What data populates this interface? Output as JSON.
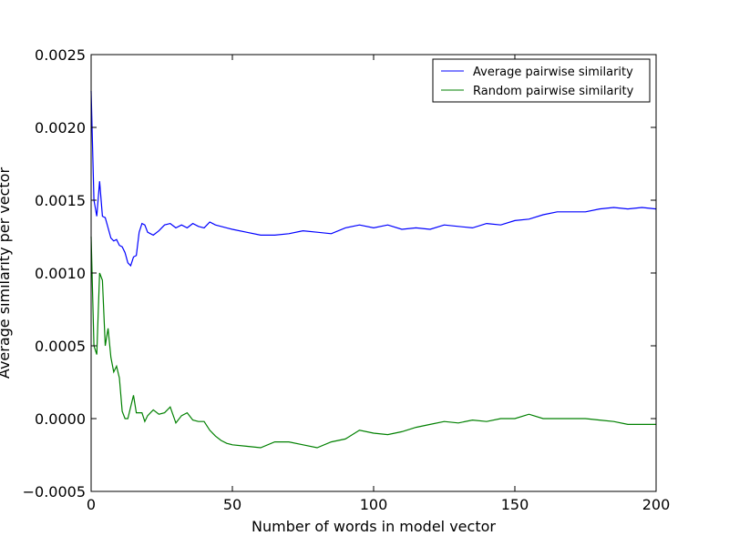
{
  "chart_data": {
    "type": "line",
    "title": "",
    "xlabel": "Number of words in model vector",
    "ylabel": "Average similarity per vector",
    "xlim": [
      0,
      200
    ],
    "ylim": [
      -0.0005,
      0.0025
    ],
    "xticks": [
      0,
      50,
      100,
      150,
      200
    ],
    "xtick_labels": [
      "0",
      "50",
      "100",
      "150",
      "200"
    ],
    "yticks": [
      -0.0005,
      0.0,
      0.0005,
      0.001,
      0.0015,
      0.002,
      0.0025
    ],
    "ytick_labels": [
      "−0.0005",
      "0.0000",
      "0.0005",
      "0.0010",
      "0.0015",
      "0.0020",
      "0.0025"
    ],
    "grid": false,
    "legend_position": "top-right",
    "series": [
      {
        "name": "Average pairwise similarity",
        "color": "#0000ff",
        "x": [
          0,
          1,
          2,
          3,
          4,
          5,
          6,
          7,
          8,
          9,
          10,
          11,
          12,
          13,
          14,
          15,
          16,
          17,
          18,
          19,
          20,
          22,
          24,
          26,
          28,
          30,
          32,
          34,
          36,
          38,
          40,
          42,
          44,
          46,
          48,
          50,
          55,
          60,
          65,
          70,
          75,
          80,
          85,
          90,
          95,
          100,
          105,
          110,
          115,
          120,
          125,
          130,
          135,
          140,
          145,
          150,
          155,
          160,
          165,
          170,
          175,
          180,
          185,
          190,
          195,
          200
        ],
        "y": [
          0.00225,
          0.0015,
          0.00139,
          0.00163,
          0.00139,
          0.00138,
          0.00131,
          0.00124,
          0.00122,
          0.00123,
          0.00119,
          0.00118,
          0.00114,
          0.00107,
          0.00105,
          0.00111,
          0.00112,
          0.00128,
          0.00134,
          0.00133,
          0.00128,
          0.00126,
          0.00129,
          0.00133,
          0.00134,
          0.00131,
          0.00133,
          0.00131,
          0.00134,
          0.00132,
          0.00131,
          0.00135,
          0.00133,
          0.00132,
          0.00131,
          0.0013,
          0.00128,
          0.00126,
          0.00126,
          0.00127,
          0.00129,
          0.00128,
          0.00127,
          0.00131,
          0.00133,
          0.00131,
          0.00133,
          0.0013,
          0.00131,
          0.0013,
          0.00133,
          0.00132,
          0.00131,
          0.00134,
          0.00133,
          0.00136,
          0.00137,
          0.0014,
          0.00142,
          0.00142,
          0.00142,
          0.00144,
          0.00145,
          0.00144,
          0.00145,
          0.00144
        ]
      },
      {
        "name": "Random pairwise similarity",
        "color": "#008000",
        "x": [
          0,
          1,
          2,
          3,
          4,
          5,
          6,
          7,
          8,
          9,
          10,
          11,
          12,
          13,
          14,
          15,
          16,
          17,
          18,
          19,
          20,
          22,
          24,
          26,
          28,
          30,
          32,
          34,
          36,
          38,
          40,
          42,
          44,
          46,
          48,
          50,
          55,
          60,
          65,
          70,
          75,
          80,
          85,
          90,
          95,
          100,
          105,
          110,
          115,
          120,
          125,
          130,
          135,
          140,
          145,
          150,
          155,
          160,
          165,
          170,
          175,
          180,
          185,
          190,
          195,
          200
        ],
        "y": [
          0.00125,
          0.0005,
          0.00044,
          0.001,
          0.00095,
          0.0005,
          0.00062,
          0.00042,
          0.00032,
          0.00036,
          0.00028,
          5e-05,
          0.0,
          0.0,
          8e-05,
          0.00016,
          4e-05,
          4e-05,
          4e-05,
          -2e-05,
          2e-05,
          6e-05,
          3e-05,
          4e-05,
          8e-05,
          -3e-05,
          2e-05,
          4e-05,
          -1e-05,
          -2e-05,
          -2e-05,
          -8e-05,
          -0.00012,
          -0.00015,
          -0.00017,
          -0.00018,
          -0.00019,
          -0.0002,
          -0.00016,
          -0.00016,
          -0.00018,
          -0.0002,
          -0.00016,
          -0.00014,
          -8e-05,
          -0.0001,
          -0.00011,
          -9e-05,
          -6e-05,
          -4e-05,
          -2e-05,
          -3e-05,
          -1e-05,
          -2e-05,
          0.0,
          0.0,
          3e-05,
          0.0,
          0.0,
          0.0,
          0.0,
          -1e-05,
          -2e-05,
          -4e-05,
          -4e-05,
          -4e-05
        ]
      }
    ]
  }
}
